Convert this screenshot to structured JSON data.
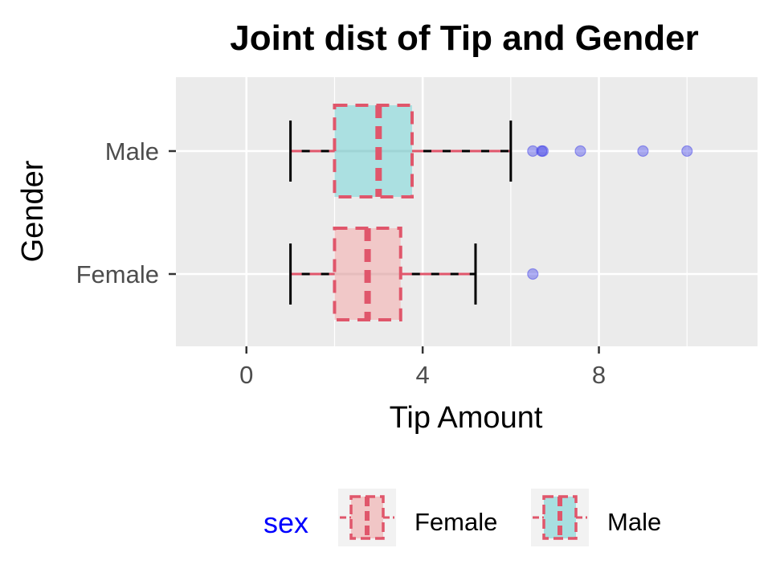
{
  "chart_data": {
    "type": "boxplot",
    "title": "Joint dist of Tip and Gender",
    "xlabel": "Tip Amount",
    "ylabel": "Gender",
    "xlim": [
      -1.6,
      11.6
    ],
    "xticks": [
      0,
      4,
      8
    ],
    "xtick_labels": [
      "0",
      "4",
      "8"
    ],
    "categories": [
      "Female",
      "Male"
    ],
    "boxes": [
      {
        "category": "Female",
        "whisker_low": 1.0,
        "q1": 2.0,
        "median": 2.75,
        "q3": 3.5,
        "whisker_high": 5.2,
        "outliers": [
          6.5
        ],
        "fill": "#f1c6c6"
      },
      {
        "category": "Male",
        "whisker_low": 1.0,
        "q1": 2.0,
        "median": 3.0,
        "q3": 3.76,
        "whisker_high": 6.0,
        "outliers": [
          6.5,
          6.7,
          6.73,
          7.58,
          9.0,
          10.0
        ],
        "fill": "#a8dfe0"
      }
    ],
    "box_outline_color": "#e0566b",
    "whisker_color": "#000000",
    "outlier_color": "#3a3ae8",
    "panel_background": "#ebebeb",
    "grid": true,
    "legend": {
      "title": "sex",
      "title_color": "#0000ff",
      "position": "bottom",
      "entries": [
        {
          "label": "Female",
          "fill": "#f1c6c6"
        },
        {
          "label": "Male",
          "fill": "#a8dfe0"
        }
      ]
    }
  }
}
